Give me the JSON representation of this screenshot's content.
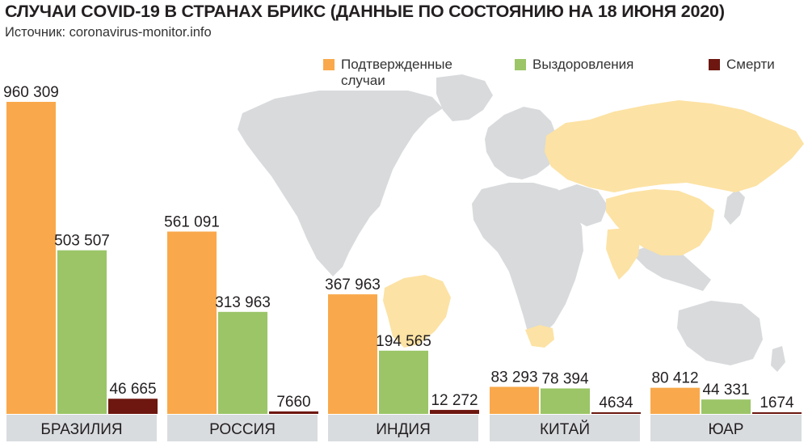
{
  "title": "СЛУЧАИ COVID-19 В СТРАНАХ БРИКС (ДАННЫЕ ПО СОСТОЯНИЮ НА 18 ИЮНЯ 2020)",
  "source": "Источник: coronavirus-monitor.info",
  "legend": [
    {
      "label": "Подтвержденные случаи",
      "color": "#f9a94b"
    },
    {
      "label": "Выздоровления",
      "color": "#9bc567"
    },
    {
      "label": "Смерти",
      "color": "#6d1710"
    }
  ],
  "colors": {
    "background_map": "#d8dadc",
    "brics_map": "#fce2a4",
    "category_strip": "#d9dcdf"
  },
  "chart_data": {
    "type": "bar",
    "title": "СЛУЧАИ COVID-19 В СТРАНАХ БРИКС (ДАННЫЕ ПО СОСТОЯНИЮ НА 18 ИЮНЯ 2020)",
    "categories": [
      "БРАЗИЛИЯ",
      "РОССИЯ",
      "ИНДИЯ",
      "КИТАЙ",
      "ЮАР"
    ],
    "series": [
      {
        "name": "Подтвержденные случаи",
        "color": "#f9a94b",
        "values": [
          960309,
          561091,
          367963,
          83293,
          80412
        ],
        "labels": [
          "960 309",
          "561 091",
          "367 963",
          "83 293",
          "80 412"
        ]
      },
      {
        "name": "Выздоровления",
        "color": "#9bc567",
        "values": [
          503507,
          313963,
          194565,
          78394,
          44331
        ],
        "labels": [
          "503 507",
          "313 963",
          "194 565",
          "78 394",
          "44 331"
        ]
      },
      {
        "name": "Смерти",
        "color": "#6d1710",
        "values": [
          46665,
          7660,
          12272,
          4634,
          1674
        ],
        "labels": [
          "46 665",
          "7660",
          "12 272",
          "4634",
          "1674"
        ]
      }
    ],
    "ylim": [
      0,
      960309
    ],
    "grid": false,
    "legend_position": "top-right"
  }
}
